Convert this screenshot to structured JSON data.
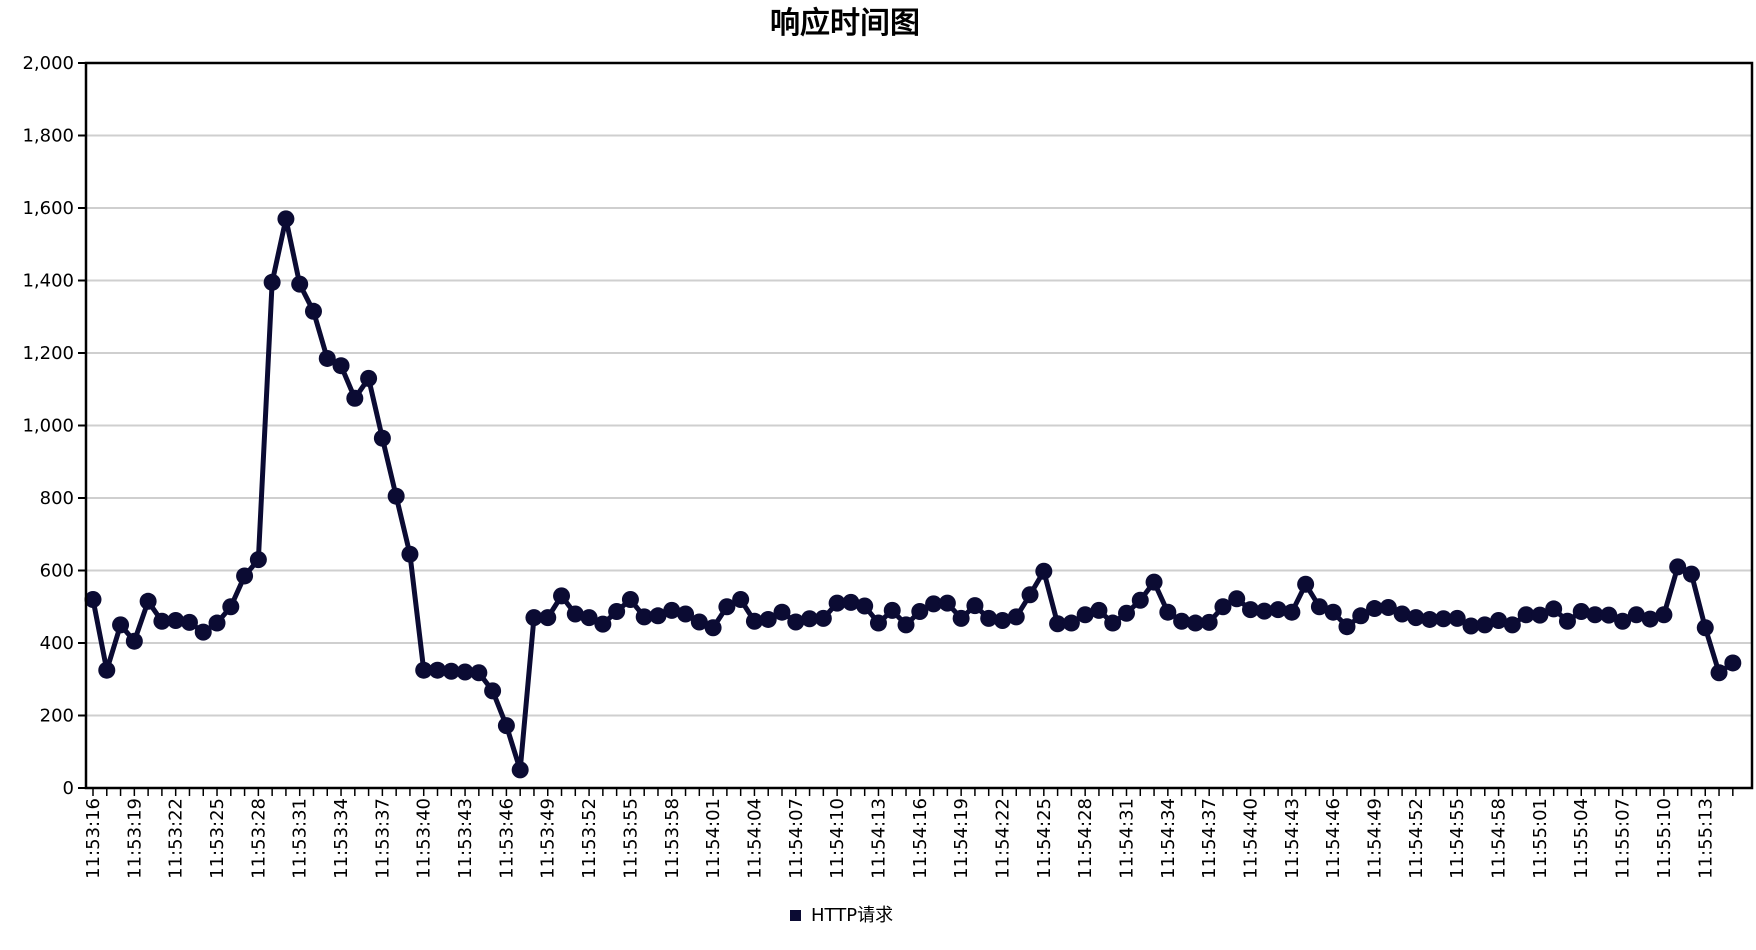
{
  "chart_data": {
    "type": "line",
    "title": "响应时间图",
    "xlabel": "",
    "ylabel": "",
    "ylim": [
      0,
      2000
    ],
    "y_ticks": [
      0,
      200,
      400,
      600,
      800,
      1000,
      1200,
      1400,
      1600,
      1800,
      2000
    ],
    "y_tick_labels": [
      "0",
      "200",
      "400",
      "600",
      "800",
      "1,000",
      "1,200",
      "1,400",
      "1,600",
      "1,800",
      "2,000"
    ],
    "grid": true,
    "legend_position": "bottom-center",
    "x_tick_labels": [
      "11:53:16",
      "11:53:19",
      "11:53:22",
      "11:53:25",
      "11:53:28",
      "11:53:31",
      "11:53:34",
      "11:53:37",
      "11:53:40",
      "11:53:43",
      "11:53:46",
      "11:53:49",
      "11:53:52",
      "11:53:55",
      "11:53:58",
      "11:54:01",
      "11:54:04",
      "11:54:07",
      "11:54:10",
      "11:54:13",
      "11:54:16",
      "11:54:19",
      "11:54:22",
      "11:54:25",
      "11:54:28",
      "11:54:31",
      "11:54:34",
      "11:54:37",
      "11:54:40",
      "11:54:43",
      "11:54:46",
      "11:54:49",
      "11:54:52",
      "11:54:55",
      "11:54:58",
      "11:55:01",
      "11:55:04",
      "11:55:07",
      "11:55:10",
      "11:55:13"
    ],
    "series": [
      {
        "name": "HTTP请求",
        "color": "#0b0b33",
        "values": [
          520,
          325,
          450,
          405,
          515,
          460,
          462,
          457,
          430,
          455,
          500,
          585,
          630,
          1395,
          1570,
          1390,
          1315,
          1185,
          1165,
          1075,
          1130,
          965,
          805,
          645,
          325,
          325,
          322,
          320,
          318,
          268,
          172,
          50,
          470,
          470,
          530,
          480,
          470,
          452,
          487,
          520,
          472,
          475,
          490,
          480,
          458,
          442,
          500,
          520,
          460,
          465,
          485,
          458,
          467,
          468,
          510,
          512,
          502,
          455,
          490,
          450,
          487,
          508,
          510,
          468,
          503,
          468,
          462,
          472,
          533,
          598,
          453,
          455,
          478,
          490,
          455,
          482,
          518,
          568,
          485,
          460,
          455,
          457,
          500,
          522,
          492,
          488,
          492,
          485,
          562,
          500,
          485,
          445,
          475,
          495,
          498,
          480,
          470,
          465,
          467,
          468,
          447,
          450,
          462,
          450,
          478,
          477,
          494,
          460,
          487,
          478,
          477,
          460,
          478,
          466,
          478,
          610,
          590,
          442,
          318,
          345
        ]
      }
    ]
  }
}
